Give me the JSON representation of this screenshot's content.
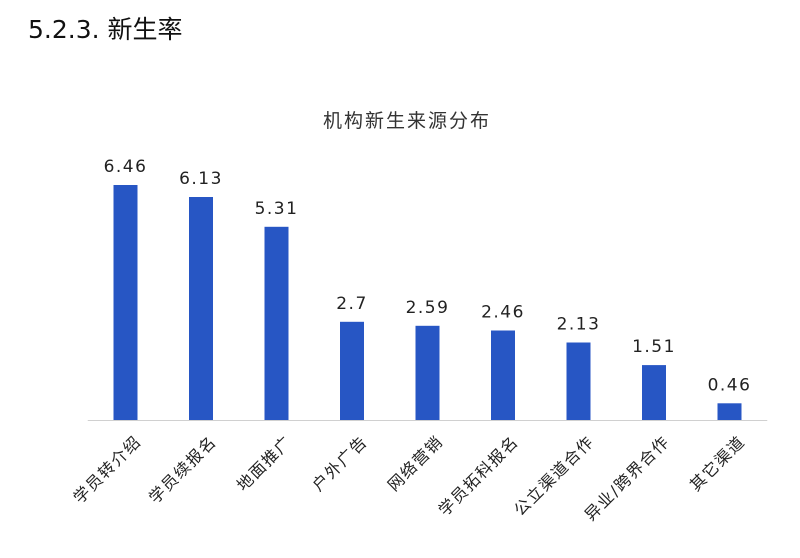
{
  "page": {
    "section_heading": "5.2.3.  新生率"
  },
  "chart_data": {
    "type": "bar",
    "title": "机构新生来源分布",
    "xlabel": "",
    "ylabel": "",
    "categories": [
      "学员转介绍",
      "学员续报名",
      "地面推广",
      "户外广告",
      "网络营销",
      "学员拓科报名",
      "公立渠道合作",
      "异业/跨界合作",
      "其它渠道"
    ],
    "values": [
      6.46,
      6.13,
      5.31,
      2.7,
      2.59,
      2.46,
      2.13,
      1.51,
      0.46
    ],
    "value_labels": [
      "6.46",
      "6.13",
      "5.31",
      "2.7",
      "2.59",
      "2.46",
      "2.13",
      "1.51",
      "0.46"
    ],
    "ylim": [
      0,
      6.46
    ],
    "bar_color": "#2756c4",
    "axis_color": "#d0d0d0",
    "grid": false,
    "legend": "none"
  }
}
